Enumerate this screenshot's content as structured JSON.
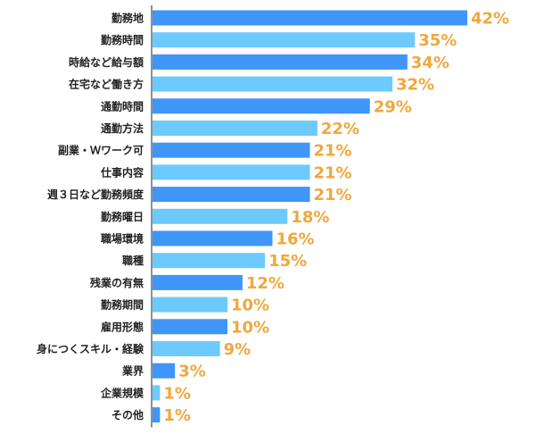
{
  "chart_data": {
    "type": "bar",
    "orientation": "horizontal",
    "categories": [
      "勤務地",
      "勤務時間",
      "時給など給与額",
      "在宅など働き方",
      "通勤時間",
      "通勤方法",
      "副業・Ｗワーク可",
      "仕事内容",
      "週３日など勤務頻度",
      "勤務曜日",
      "職場環境",
      "職種",
      "残業の有無",
      "勤務期間",
      "雇用形態",
      "身につくスキル・経験",
      "業界",
      "企業規模",
      "その他"
    ],
    "values": [
      42,
      35,
      34,
      32,
      29,
      22,
      21,
      21,
      21,
      18,
      16,
      15,
      12,
      10,
      10,
      9,
      3,
      1,
      1
    ],
    "value_labels": [
      "42%",
      "35%",
      "34%",
      "32%",
      "29%",
      "22%",
      "21%",
      "21%",
      "21%",
      "18%",
      "16%",
      "15%",
      "12%",
      "10%",
      "10%",
      "9%",
      "3%",
      "1%",
      "1%"
    ],
    "unit": "%",
    "title": "",
    "xlabel": "",
    "ylabel": "",
    "xlim": [
      0,
      42
    ],
    "grid": false,
    "legend": "none",
    "colors": {
      "bar_primary": "#3f96f7",
      "bar_alternate": "#6ccaff",
      "value_label": "#f0a73d",
      "axis": "#222222"
    }
  }
}
